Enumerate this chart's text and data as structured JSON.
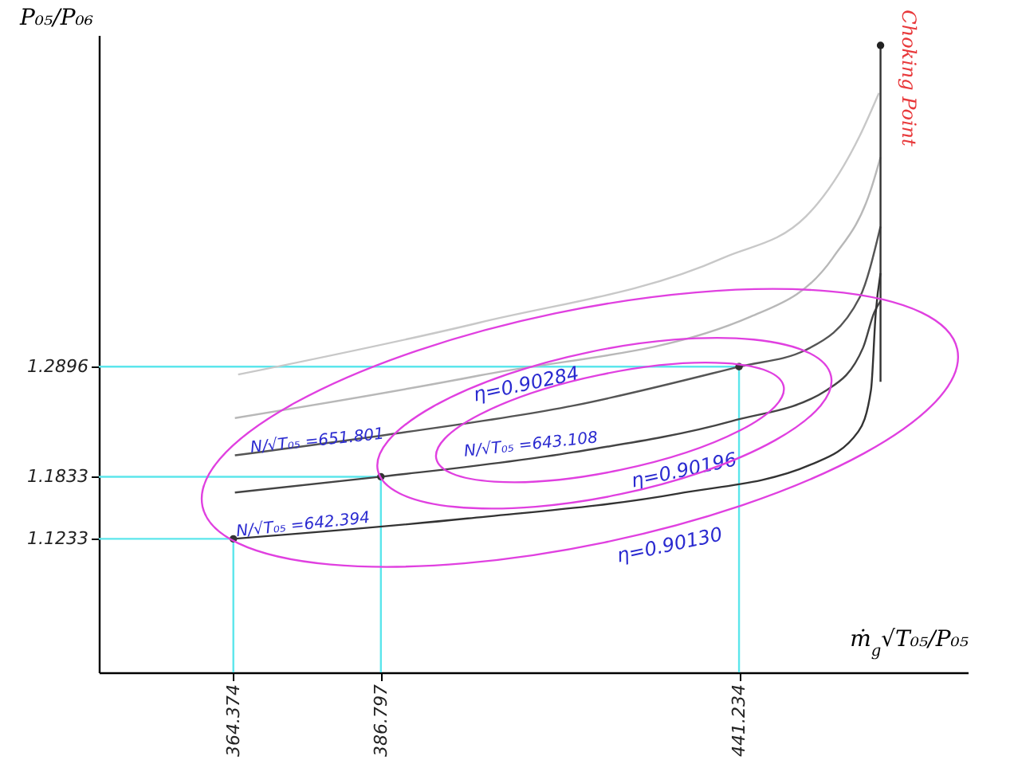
{
  "chart_data": {
    "type": "line",
    "xlabel": "ṁ$_{g}$√T₀₅/P₀₅",
    "ylabel": "P₀₅/P₀₆",
    "xlim": [
      343.93,
      476
    ],
    "ylim": [
      0.9943,
      1.61
    ],
    "xticks": [
      364.374,
      386.797,
      441.234
    ],
    "yticks": [
      1.1233,
      1.1833,
      1.2896
    ],
    "grid": false,
    "series": [
      {
        "color": "#5ce6ec",
        "x": [
          364.374,
          364.374,
          343.93
        ],
        "values": [
          0.9943,
          1.1233,
          1.1233
        ]
      },
      {
        "color": "#5ce6ec",
        "x": [
          386.797,
          386.797,
          343.93
        ],
        "values": [
          0.9943,
          1.1833,
          1.1833
        ]
      },
      {
        "color": "#5ce6ec",
        "x": [
          441.234,
          441.234,
          343.93
        ],
        "values": [
          0.9943,
          1.2896,
          1.2896
        ]
      },
      {
        "color": "#c8c8c8",
        "x": [
          365.1,
          401.65,
          438.93,
          451.44,
          459.61,
          462.5
        ],
        "values": [
          1.282,
          1.332,
          1.395,
          1.435,
          1.513,
          1.554
        ]
      },
      {
        "color": "#b8b8b8",
        "x": [
          364.61,
          401.65,
          443.02,
          455.52,
          461.29,
          462.74
        ],
        "values": [
          1.24,
          1.281,
          1.338,
          1.395,
          1.461,
          1.492
        ]
      },
      {
        "color": "#555555",
        "x": [
          364.61,
          387.94,
          416.08,
          441.234,
          451.44,
          459.61,
          462.74
        ],
        "values": [
          1.204,
          1.224,
          1.252,
          1.2896,
          1.306,
          1.357,
          1.425
        ]
      },
      {
        "color": "#444444",
        "x": [
          364.61,
          386.797,
          416.08,
          440.13,
          454.56,
          460.09,
          461.78,
          462.74
        ],
        "values": [
          1.168,
          1.1833,
          1.207,
          1.237,
          1.267,
          1.308,
          1.342,
          1.353
        ]
      },
      {
        "color": "#333333",
        "x": [
          364.374,
          399.97,
          431.95,
          452.16,
          459.37,
          461.29,
          462.02,
          462.74
        ],
        "values": [
          1.1233,
          1.143,
          1.167,
          1.195,
          1.227,
          1.267,
          1.342,
          1.38
        ]
      },
      {
        "color": "#333333",
        "x": [
          462.74,
          462.74
        ],
        "values": [
          1.275,
          1.6
        ]
      },
      {
        "type": "scatter",
        "color": "#333333",
        "x": [
          364.374,
          386.797,
          441.234
        ],
        "values": [
          1.1233,
          1.1833,
          1.2896
        ]
      },
      {
        "type": "scatter",
        "color": "#222222",
        "x": [
          462.74
        ],
        "values": [
          1.6
        ]
      }
    ],
    "annotations": [
      {
        "text": "N/√T₀₅ =651.801",
        "x": 377.12,
        "y": 1.218
      },
      "N/√T₀₅ =643.108",
      {
        "text": "N/√T₀₅ =642.394",
        "x": 374.96,
        "y": 1.137
      },
      "η=0.90284",
      "η=0.90196",
      "η=0.90130",
      "Choking Point"
    ]
  }
}
